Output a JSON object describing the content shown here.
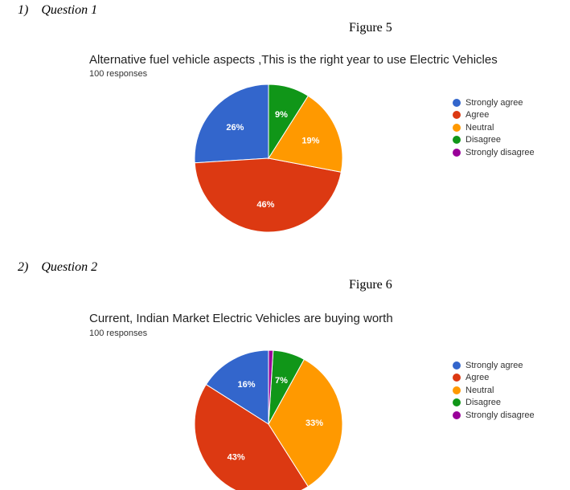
{
  "questions": [
    {
      "heading": "1)    Question 1",
      "figure": "Figure 5"
    },
    {
      "heading": "2)    Question 2",
      "figure": "Figure 6"
    }
  ],
  "chart_data": [
    {
      "type": "pie",
      "title": "Alternative fuel vehicle aspects ,This is the right year to use Electric Vehicles",
      "subtitle": "100 responses",
      "legend_position": "right",
      "slices": [
        {
          "label": "Strongly agree",
          "value": 26,
          "color": "#3366cc",
          "display": "26%"
        },
        {
          "label": "Agree",
          "value": 46,
          "color": "#dc3912",
          "display": "46%"
        },
        {
          "label": "Neutral",
          "value": 19,
          "color": "#ff9900",
          "display": "19%"
        },
        {
          "label": "Disagree",
          "value": 9,
          "color": "#109618",
          "display": "9%"
        },
        {
          "label": "Strongly disagree",
          "value": 0,
          "color": "#990099",
          "display": ""
        }
      ]
    },
    {
      "type": "pie",
      "title": "Current, Indian Market Electric Vehicles are buying worth",
      "subtitle": "100 responses",
      "legend_position": "right",
      "slices": [
        {
          "label": "Strongly agree",
          "value": 16,
          "color": "#3366cc",
          "display": "16%"
        },
        {
          "label": "Agree",
          "value": 43,
          "color": "#dc3912",
          "display": "43%"
        },
        {
          "label": "Neutral",
          "value": 33,
          "color": "#ff9900",
          "display": "33%"
        },
        {
          "label": "Disagree",
          "value": 7,
          "color": "#109618",
          "display": "7%"
        },
        {
          "label": "Strongly disagree",
          "value": 1,
          "color": "#990099",
          "display": ""
        }
      ]
    }
  ]
}
